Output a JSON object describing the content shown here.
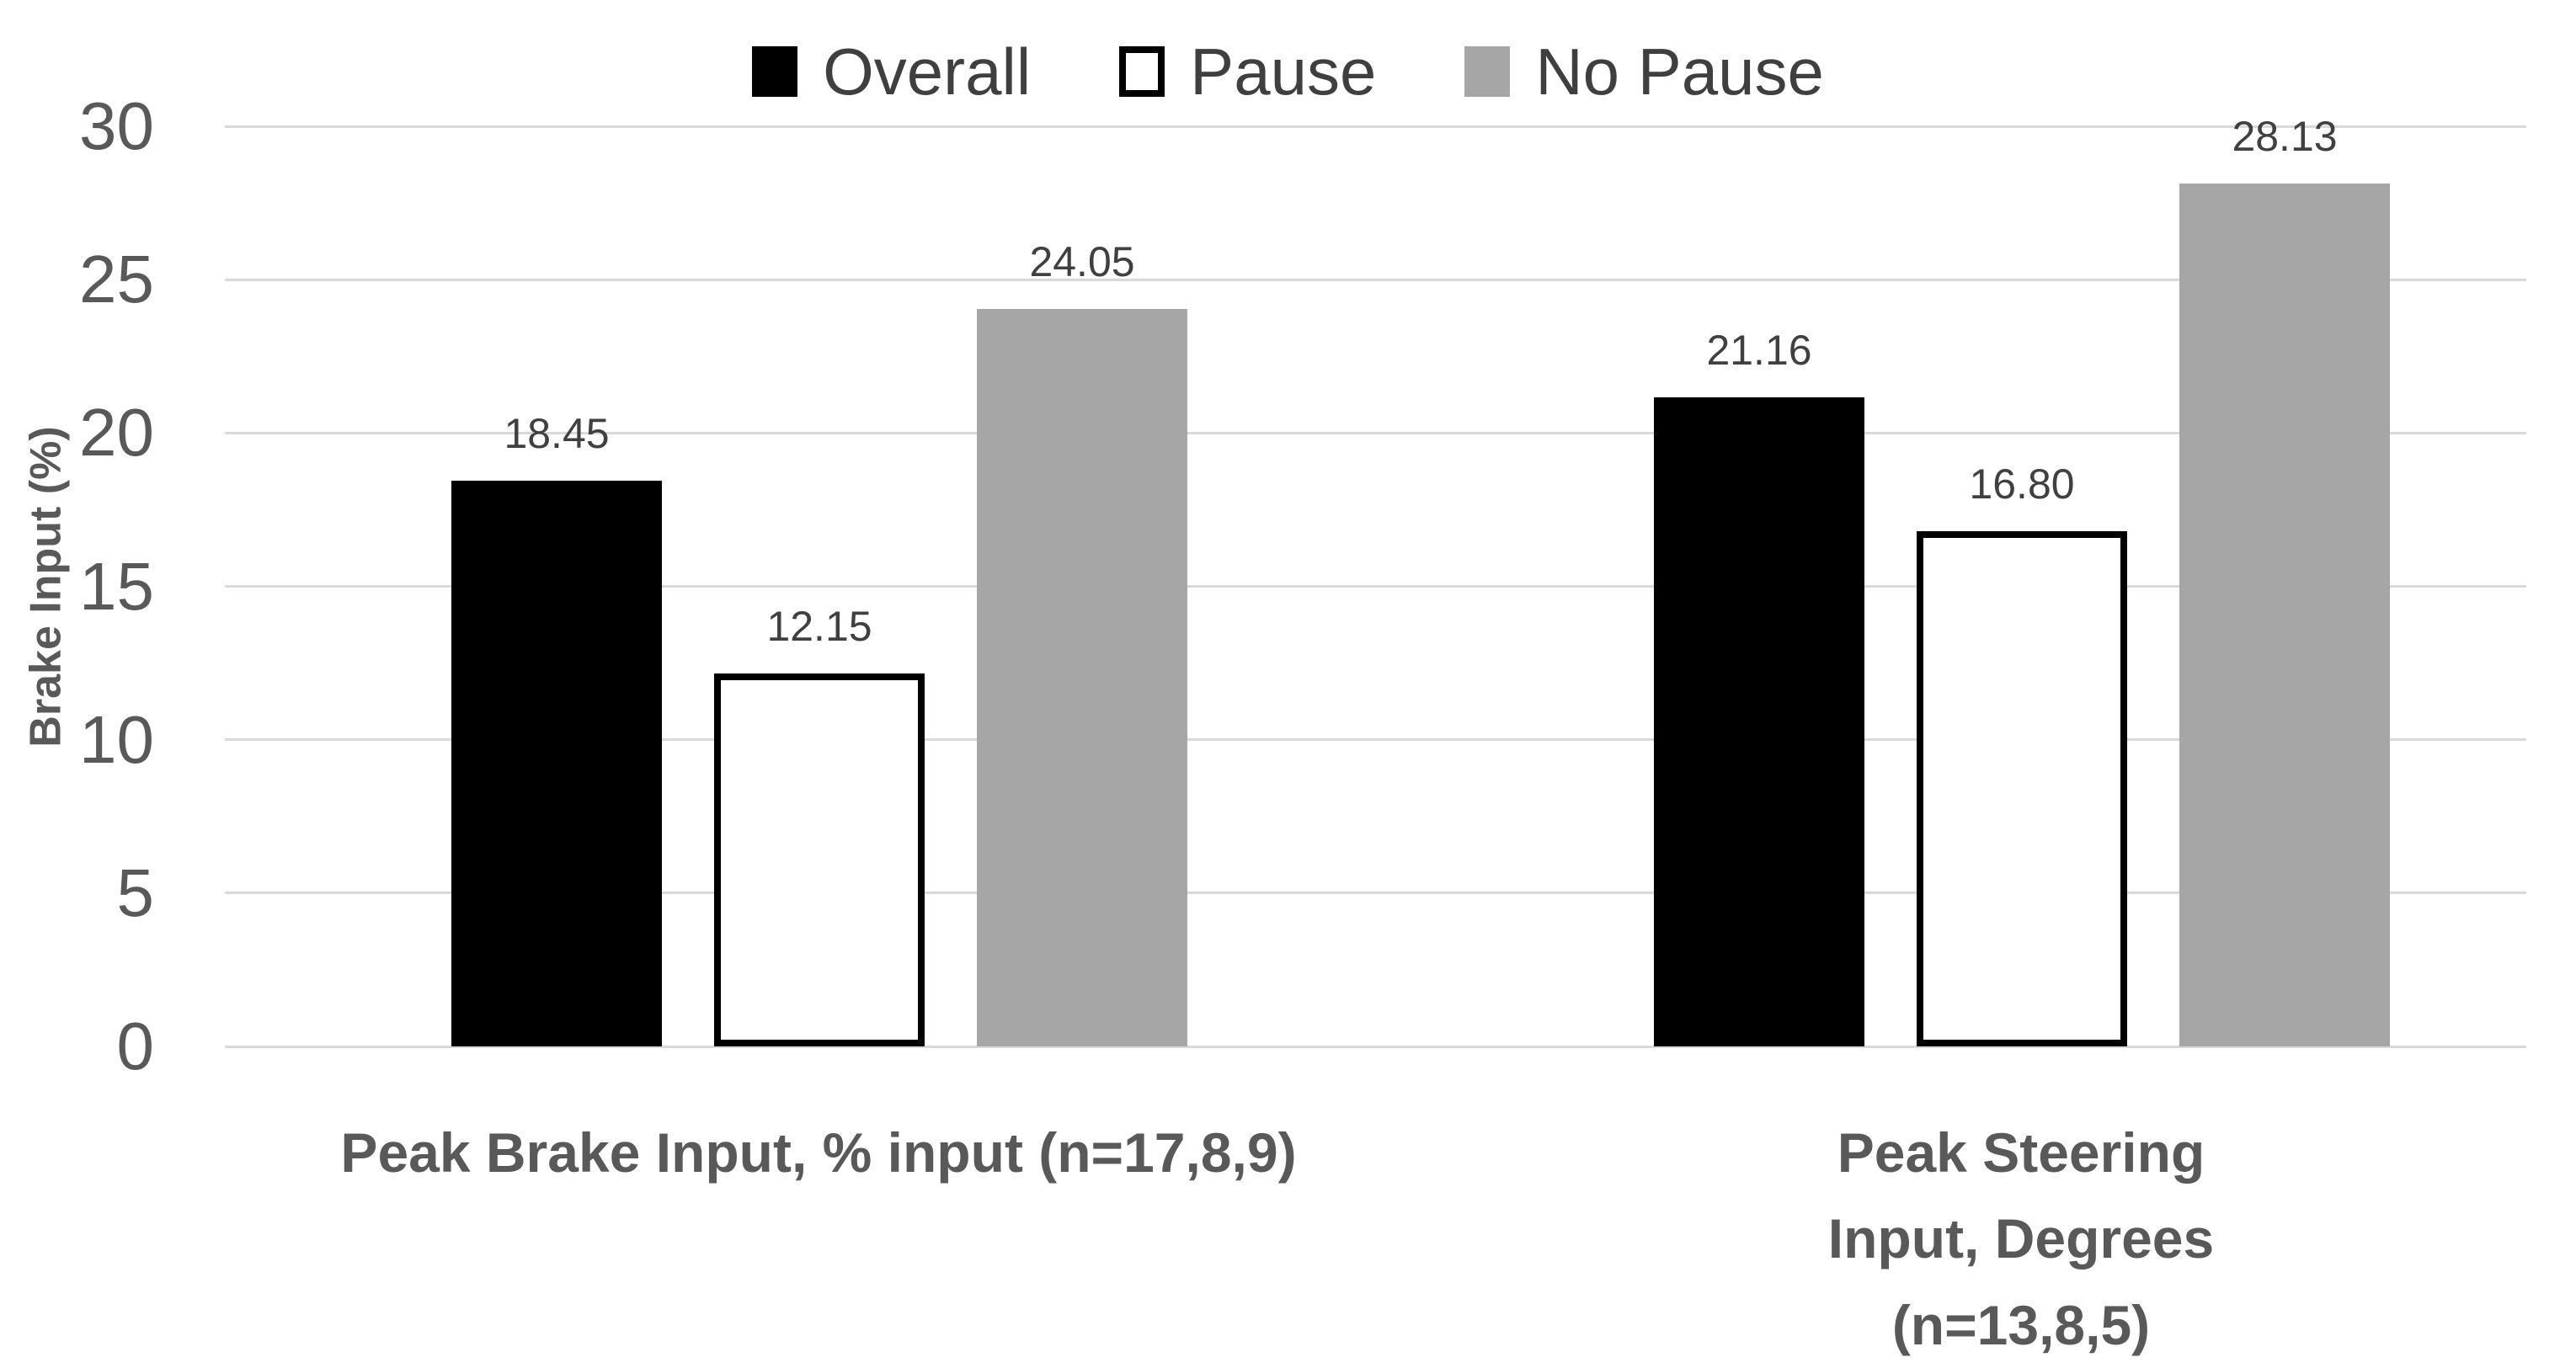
{
  "chart_data": {
    "type": "bar",
    "title": "",
    "ylabel": "Brake Input (%)",
    "ylim": [
      0,
      30
    ],
    "yticks": [
      0,
      5,
      10,
      15,
      20,
      25,
      30
    ],
    "grid": true,
    "legend_position": "top-center",
    "categories": [
      "Peak Brake Input, % input (n=17,8,9)",
      "Peak Steering  Input, Degrees\n(n=13,8,5)"
    ],
    "series": [
      {
        "name": "Overall",
        "values": [
          18.45,
          21.16
        ],
        "value_labels": [
          "18.45",
          "21.16"
        ],
        "fill": "#000000",
        "border": "#000000"
      },
      {
        "name": "Pause",
        "values": [
          12.15,
          16.8
        ],
        "value_labels": [
          "12.15",
          "16.80"
        ],
        "fill": "#ffffff",
        "border": "#000000"
      },
      {
        "name": "No Pause",
        "values": [
          24.05,
          28.13
        ],
        "value_labels": [
          "24.05",
          "28.13"
        ],
        "fill": "#a6a6a6",
        "border": "#a6a6a6"
      }
    ]
  },
  "style": {
    "background": "#ffffff",
    "gridline_color": "#d9d9d9",
    "tick_label_color": "#595959",
    "data_label_color": "#404040",
    "legend_text_color": "#3f3f3f",
    "category_label_color": "#595959",
    "axis_title_color": "#595959"
  }
}
